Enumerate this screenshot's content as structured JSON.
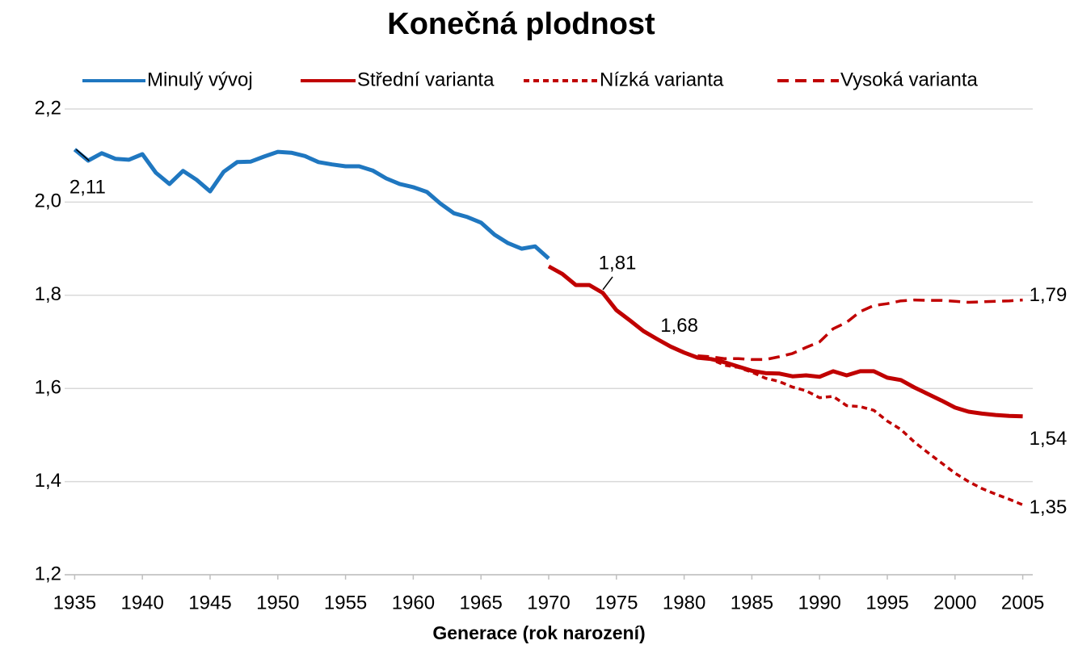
{
  "chart_data": {
    "type": "line",
    "title": "Konečná plodnost",
    "x_label": "Generace (rok narození)",
    "xlim": [
      1934.5,
      2005.5
    ],
    "xticks": [
      1935,
      1940,
      1945,
      1950,
      1955,
      1960,
      1965,
      1970,
      1975,
      1980,
      1985,
      1990,
      1995,
      2000,
      2005
    ],
    "ylim": [
      1.2,
      2.2
    ],
    "yticks": [
      {
        "value": 1.2,
        "label": "1,2"
      },
      {
        "value": 1.4,
        "label": "1,4"
      },
      {
        "value": 1.6,
        "label": "1,6"
      },
      {
        "value": 1.8,
        "label": "1,8"
      },
      {
        "value": 2.0,
        "label": "2,0"
      },
      {
        "value": 2.2,
        "label": "2,2"
      }
    ],
    "grid": true,
    "legend": "top",
    "series": [
      {
        "name": "Minulý vývoj",
        "color": "#1f77c0",
        "line_style": "solid",
        "x": [
          1935,
          1936,
          1937,
          1938,
          1939,
          1940,
          1941,
          1942,
          1943,
          1944,
          1945,
          1946,
          1947,
          1948,
          1949,
          1950,
          1951,
          1952,
          1953,
          1954,
          1955,
          1956,
          1957,
          1958,
          1959,
          1960,
          1961,
          1962,
          1963,
          1964,
          1965,
          1966,
          1967,
          1968,
          1969,
          1970
        ],
        "values": [
          2.113,
          2.089,
          2.105,
          2.093,
          2.091,
          2.103,
          2.063,
          2.039,
          2.067,
          2.048,
          2.023,
          2.065,
          2.086,
          2.087,
          2.098,
          2.108,
          2.106,
          2.099,
          2.086,
          2.081,
          2.077,
          2.077,
          2.068,
          2.051,
          2.039,
          2.032,
          2.022,
          1.997,
          1.976,
          1.968,
          1.956,
          1.93,
          1.912,
          1.9,
          1.905,
          1.879
        ],
        "value_labels": [
          "2,11",
          null,
          null,
          null,
          null,
          null,
          null,
          null,
          null,
          null,
          null,
          null,
          null,
          null,
          null,
          null,
          null,
          null,
          null,
          null,
          null,
          null,
          null,
          null,
          null,
          null,
          null,
          null,
          null,
          null,
          null,
          null,
          null,
          null,
          null,
          null
        ]
      },
      {
        "name": "Střední varianta",
        "color": "#c00000",
        "line_style": "solid",
        "x": [
          1970,
          1971,
          1972,
          1973,
          1974,
          1975,
          1976,
          1977,
          1978,
          1979,
          1980,
          1981,
          1982,
          1983,
          1984,
          1985,
          1986,
          1987,
          1988,
          1989,
          1990,
          1991,
          1992,
          1993,
          1994,
          1995,
          1996,
          1997,
          1998,
          1999,
          2000,
          2001,
          2002,
          2003,
          2004,
          2005
        ],
        "values": [
          1.862,
          1.846,
          1.822,
          1.822,
          1.805,
          1.768,
          1.746,
          1.723,
          1.706,
          1.69,
          1.677,
          1.666,
          1.663,
          1.656,
          1.647,
          1.638,
          1.633,
          1.632,
          1.626,
          1.628,
          1.625,
          1.637,
          1.628,
          1.637,
          1.637,
          1.623,
          1.618,
          1.602,
          1.588,
          1.574,
          1.559,
          1.55,
          1.546,
          1.543,
          1.541,
          1.54
        ],
        "value_labels": [
          null,
          null,
          null,
          null,
          "1,81",
          null,
          null,
          null,
          null,
          null,
          "1,68",
          null,
          null,
          null,
          null,
          null,
          null,
          null,
          null,
          null,
          null,
          null,
          null,
          null,
          null,
          null,
          null,
          null,
          null,
          null,
          null,
          null,
          null,
          null,
          null,
          "1,54"
        ]
      },
      {
        "name": "Nízká varianta",
        "color": "#c00000",
        "line_style": "dotted",
        "x": [
          1981,
          1982,
          1983,
          1984,
          1985,
          1986,
          1987,
          1988,
          1989,
          1990,
          1991,
          1992,
          1993,
          1994,
          1995,
          1996,
          1997,
          1998,
          1999,
          2000,
          2001,
          2002,
          2003,
          2004,
          2005
        ],
        "values": [
          1.67,
          1.662,
          1.65,
          1.645,
          1.635,
          1.622,
          1.615,
          1.603,
          1.595,
          1.58,
          1.583,
          1.563,
          1.561,
          1.553,
          1.53,
          1.512,
          1.485,
          1.462,
          1.44,
          1.418,
          1.4,
          1.385,
          1.373,
          1.362,
          1.35
        ],
        "value_labels": [
          null,
          null,
          null,
          null,
          null,
          null,
          null,
          null,
          null,
          null,
          null,
          null,
          null,
          null,
          null,
          null,
          null,
          null,
          null,
          null,
          null,
          null,
          null,
          null,
          "1,35"
        ]
      },
      {
        "name": "Vysoká varianta",
        "color": "#c00000",
        "line_style": "dashed",
        "x": [
          1981,
          1982,
          1983,
          1984,
          1985,
          1986,
          1987,
          1988,
          1989,
          1990,
          1991,
          1992,
          1993,
          1994,
          1995,
          1996,
          1997,
          1998,
          1999,
          2000,
          2001,
          2002,
          2003,
          2004,
          2005
        ],
        "values": [
          1.67,
          1.668,
          1.664,
          1.664,
          1.662,
          1.662,
          1.668,
          1.675,
          1.688,
          1.7,
          1.728,
          1.742,
          1.765,
          1.778,
          1.782,
          1.788,
          1.79,
          1.789,
          1.789,
          1.787,
          1.785,
          1.786,
          1.787,
          1.788,
          1.79
        ],
        "value_labels": [
          null,
          null,
          null,
          null,
          null,
          null,
          null,
          null,
          null,
          null,
          null,
          null,
          null,
          null,
          null,
          null,
          null,
          null,
          null,
          null,
          null,
          null,
          null,
          null,
          "1,79"
        ]
      }
    ]
  }
}
